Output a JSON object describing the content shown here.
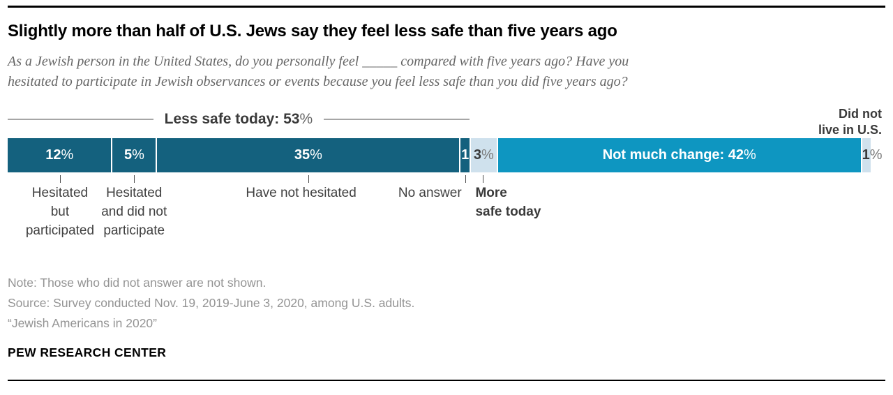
{
  "header": {
    "title": "Slightly more than half of U.S. Jews say they feel less safe than five years ago",
    "subtitle_lines": [
      "As a Jewish person in the United States, do you personally feel _____ compared with five years ago? Have you",
      "hesitated to participate in Jewish observances or events because you feel less safe than you did five years ago?"
    ]
  },
  "chart_data": {
    "type": "bar",
    "stacked": true,
    "orientation": "horizontal",
    "unit": "% of U.S. Jews",
    "segments": [
      {
        "key": "hesitated-but-participated",
        "label": "Hesitated but participated",
        "group": "Less safe today",
        "value": 12,
        "display": "12%",
        "color": "#14617e",
        "text_color": "#ffffff",
        "tick": true
      },
      {
        "key": "hesitated-and-did-not-participate",
        "label": "Hesitated and did not participate",
        "group": "Less safe today",
        "value": 5,
        "display": "5%",
        "color": "#14617e",
        "text_color": "#ffffff",
        "tick": true
      },
      {
        "key": "have-not-hesitated",
        "label": "Have not hesitated",
        "group": "Less safe today",
        "value": 35,
        "display": "35%",
        "color": "#14617e",
        "text_color": "#ffffff",
        "tick": true
      },
      {
        "key": "no-answer",
        "label": "No answer",
        "group": "Less safe today",
        "value": 1,
        "display": "1",
        "color": "#14617e",
        "text_color": "#ffffff",
        "tick": true
      },
      {
        "key": "more-safe-today",
        "label": "More safe today",
        "value": 3,
        "display": "3%",
        "color": "#cfe1ed",
        "text_color": "#3a3a3a",
        "tick": true
      },
      {
        "key": "not-much-change",
        "label": "Not much change",
        "value": 42,
        "display": "Not much change: 42%",
        "color": "#0e96c1",
        "text_color": "#ffffff",
        "tick": false
      },
      {
        "key": "did-not-live-in-us",
        "label": "Did not live in U.S.",
        "value": 1,
        "display": "1%",
        "color": "#cfe1ed",
        "text_color": "#3a3a3a",
        "tick": false,
        "align": "start"
      }
    ],
    "group_total": {
      "label": "Less safe today",
      "value": 53
    },
    "axis_labels": [
      {
        "lines": [
          "Hesitated",
          "but",
          "participated"
        ]
      },
      {
        "lines": [
          "Hesitated",
          "and did not",
          "participate"
        ]
      },
      {
        "lines": [
          "Have not hesitated"
        ]
      },
      {
        "lines": [
          "No answer"
        ]
      },
      {
        "lines": [
          "More",
          "safe today"
        ],
        "emphasis": true
      }
    ],
    "annotations": {
      "less_safe_main": "Less safe today: 53",
      "less_safe_pct": "%",
      "did_not_live": [
        "Did not",
        "live in U.S."
      ]
    }
  },
  "footer": {
    "note": "Note: Those who did not answer are not shown.",
    "source": "Source: Survey conducted Nov. 19, 2019-June 3, 2020, among U.S. adults.",
    "report": "“Jewish Americans in 2020”",
    "brand": "PEW RESEARCH CENTER"
  }
}
